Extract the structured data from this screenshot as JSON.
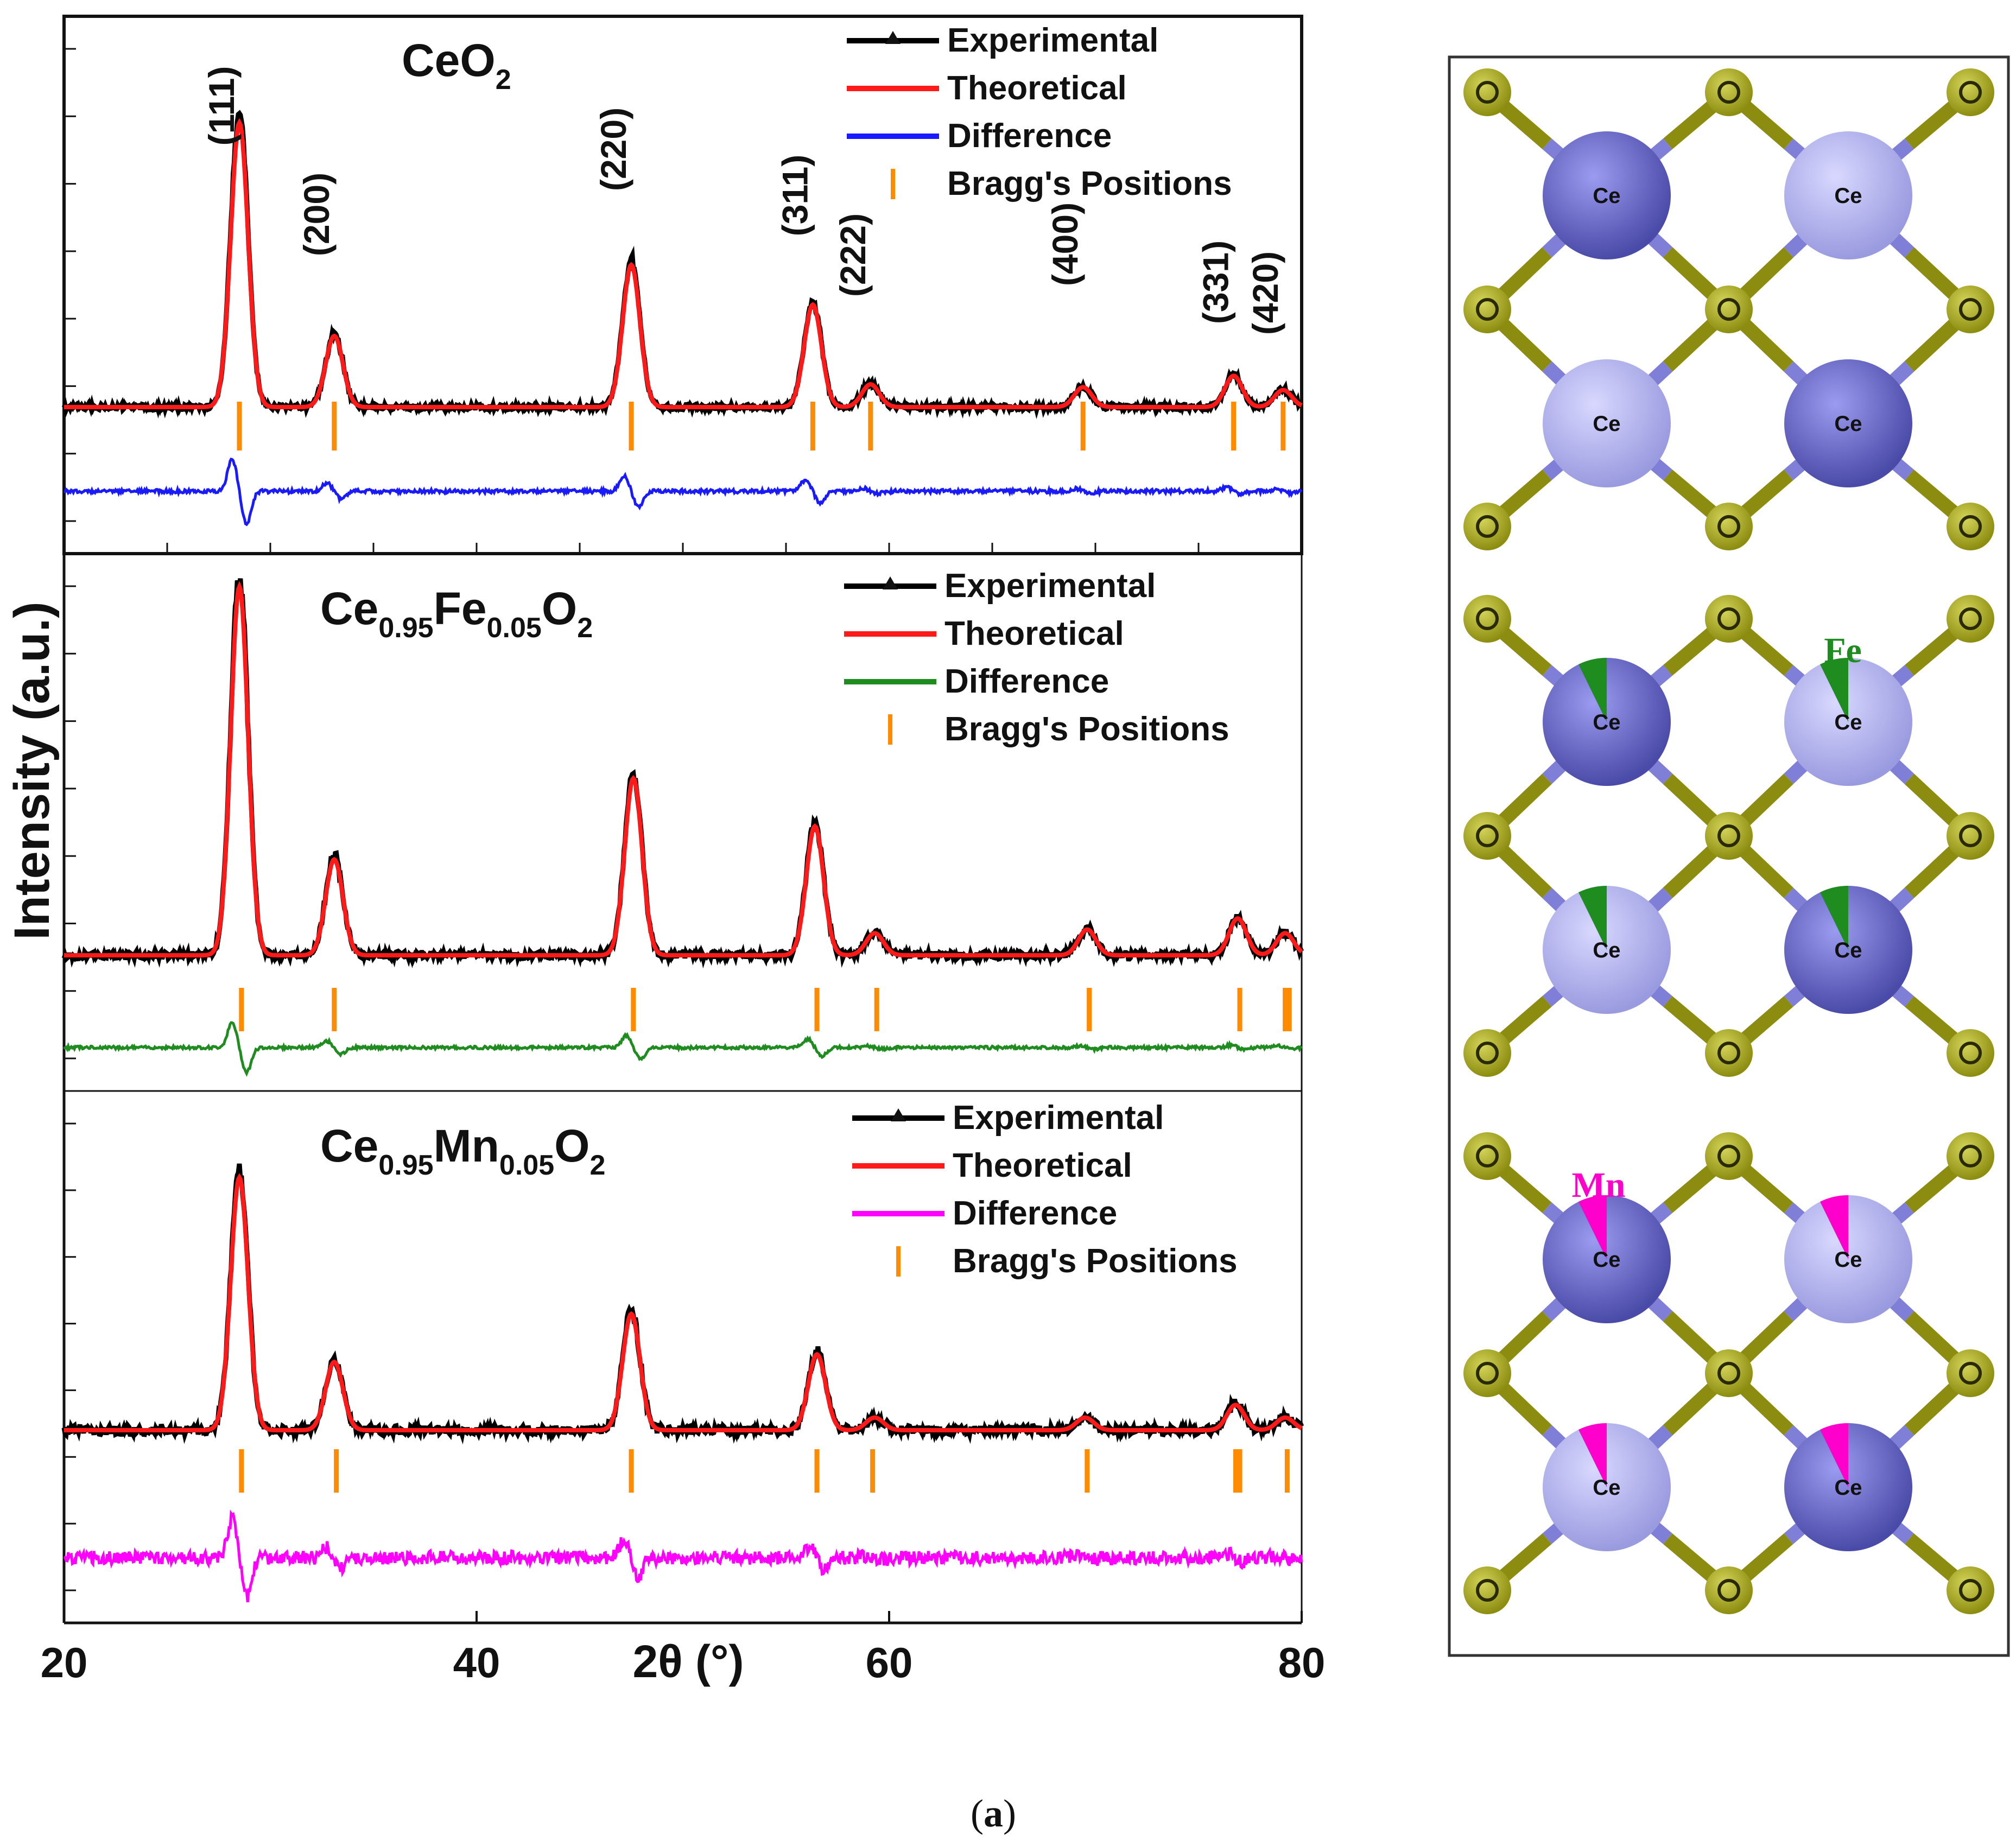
{
  "figure": {
    "caption_label": "a",
    "y_axis_label": "Intensity (a.u.)",
    "x_axis_label": "2θ (°)",
    "x_ticks": [
      "20",
      "40",
      "60",
      "80"
    ]
  },
  "legend": {
    "experimental": "Experimental",
    "theoretical": "Theoretical",
    "difference": "Difference",
    "bragg": "Bragg's Positions"
  },
  "colors": {
    "experimental": "#000000",
    "theoretical": "#ff1a1a",
    "bragg": "#ff8c00",
    "difference_ceo2": "#1a1aff",
    "difference_fe": "#1e8c1e",
    "difference_mn": "#ff00ff",
    "ce_dark": "#4a4aa8",
    "ce_light": "#9a9ae0",
    "oxygen": "#8c8c10",
    "bond_ce": "#7f7fd8",
    "bond_o": "#8c8c10",
    "fe_wedge": "#1e8c1e",
    "mn_wedge": "#ff00cc"
  },
  "chart_data": [
    {
      "type": "line",
      "sample": {
        "base": "CeO",
        "sub2": "2"
      },
      "xlim": [
        20,
        80
      ],
      "series": [
        {
          "name": "Experimental"
        },
        {
          "name": "Theoretical"
        },
        {
          "name": "Difference"
        }
      ],
      "peaks": [
        {
          "hkl": "(111)",
          "two_theta": 28.5,
          "intensity": 1.0
        },
        {
          "hkl": "(200)",
          "two_theta": 33.1,
          "intensity": 0.25
        },
        {
          "hkl": "(220)",
          "two_theta": 47.5,
          "intensity": 0.5
        },
        {
          "hkl": "(311)",
          "two_theta": 56.3,
          "intensity": 0.36
        },
        {
          "hkl": "(222)",
          "two_theta": 59.1,
          "intensity": 0.08
        },
        {
          "hkl": "(400)",
          "two_theta": 69.4,
          "intensity": 0.07
        },
        {
          "hkl": "(331)",
          "two_theta": 76.7,
          "intensity": 0.11
        },
        {
          "hkl": "(420)",
          "two_theta": 79.1,
          "intensity": 0.06
        }
      ],
      "bragg_positions": [
        28.5,
        33.1,
        47.5,
        56.3,
        59.1,
        69.4,
        76.7,
        79.1
      ]
    },
    {
      "type": "line",
      "sample": {
        "base": "Ce",
        "sub1": "0.95",
        "mid": "Fe",
        "sub2": "0.05",
        "tail": "O",
        "sub3": "2"
      },
      "xlim": [
        20,
        80
      ],
      "series": [
        {
          "name": "Experimental"
        },
        {
          "name": "Theoretical"
        },
        {
          "name": "Difference"
        }
      ],
      "peaks": [
        {
          "two_theta": 28.5,
          "intensity": 1.0
        },
        {
          "two_theta": 33.1,
          "intensity": 0.26
        },
        {
          "two_theta": 47.6,
          "intensity": 0.48
        },
        {
          "two_theta": 56.4,
          "intensity": 0.35
        },
        {
          "two_theta": 59.3,
          "intensity": 0.06
        },
        {
          "two_theta": 69.6,
          "intensity": 0.07
        },
        {
          "two_theta": 76.9,
          "intensity": 0.1
        },
        {
          "two_theta": 79.2,
          "intensity": 0.06
        }
      ],
      "bragg_positions": [
        28.6,
        33.1,
        47.6,
        56.5,
        59.4,
        69.7,
        77.0,
        79.2,
        79.4
      ]
    },
    {
      "type": "line",
      "sample": {
        "base": "Ce",
        "sub1": "0.95",
        "mid": "Mn",
        "sub2": "0.05",
        "tail": "O",
        "sub3": "2"
      },
      "xlim": [
        20,
        80
      ],
      "series": [
        {
          "name": "Experimental"
        },
        {
          "name": "Theoretical"
        },
        {
          "name": "Difference"
        }
      ],
      "peaks": [
        {
          "two_theta": 28.5,
          "intensity": 1.0
        },
        {
          "two_theta": 33.1,
          "intensity": 0.27
        },
        {
          "two_theta": 47.5,
          "intensity": 0.46
        },
        {
          "two_theta": 56.5,
          "intensity": 0.3
        },
        {
          "two_theta": 59.3,
          "intensity": 0.05
        },
        {
          "two_theta": 69.5,
          "intensity": 0.05
        },
        {
          "two_theta": 76.8,
          "intensity": 0.1
        },
        {
          "two_theta": 79.2,
          "intensity": 0.05
        }
      ],
      "bragg_positions": [
        28.6,
        33.2,
        47.5,
        56.5,
        59.2,
        69.6,
        76.8,
        77.0,
        79.3
      ]
    }
  ],
  "structures": [
    {
      "dopant": null,
      "atom_label": "Ce"
    },
    {
      "dopant": "Fe",
      "atom_label": "Ce"
    },
    {
      "dopant": "Mn",
      "atom_label": "Ce"
    }
  ]
}
